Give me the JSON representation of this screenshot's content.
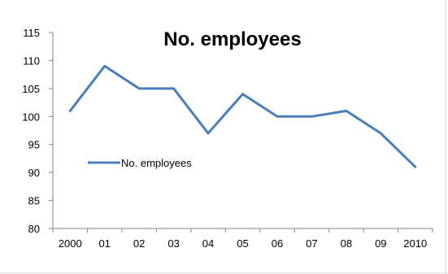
{
  "chart_data": {
    "type": "line",
    "title": "No. employees",
    "categories": [
      "2000",
      "01",
      "02",
      "03",
      "04",
      "05",
      "06",
      "07",
      "08",
      "09",
      "2010"
    ],
    "series": [
      {
        "name": "No. employees",
        "values": [
          101,
          109,
          105,
          105,
          97,
          104,
          100,
          100,
          101,
          97,
          91
        ]
      }
    ],
    "xlabel": "",
    "ylabel": "",
    "ylim": [
      80,
      115
    ],
    "y_ticks": [
      80,
      85,
      90,
      95,
      100,
      105,
      110,
      115
    ],
    "grid": false,
    "legend": "left-center",
    "colors": {
      "series": "#4a7ebb",
      "axis": "#868686",
      "frame": "#d9d9d9"
    }
  }
}
